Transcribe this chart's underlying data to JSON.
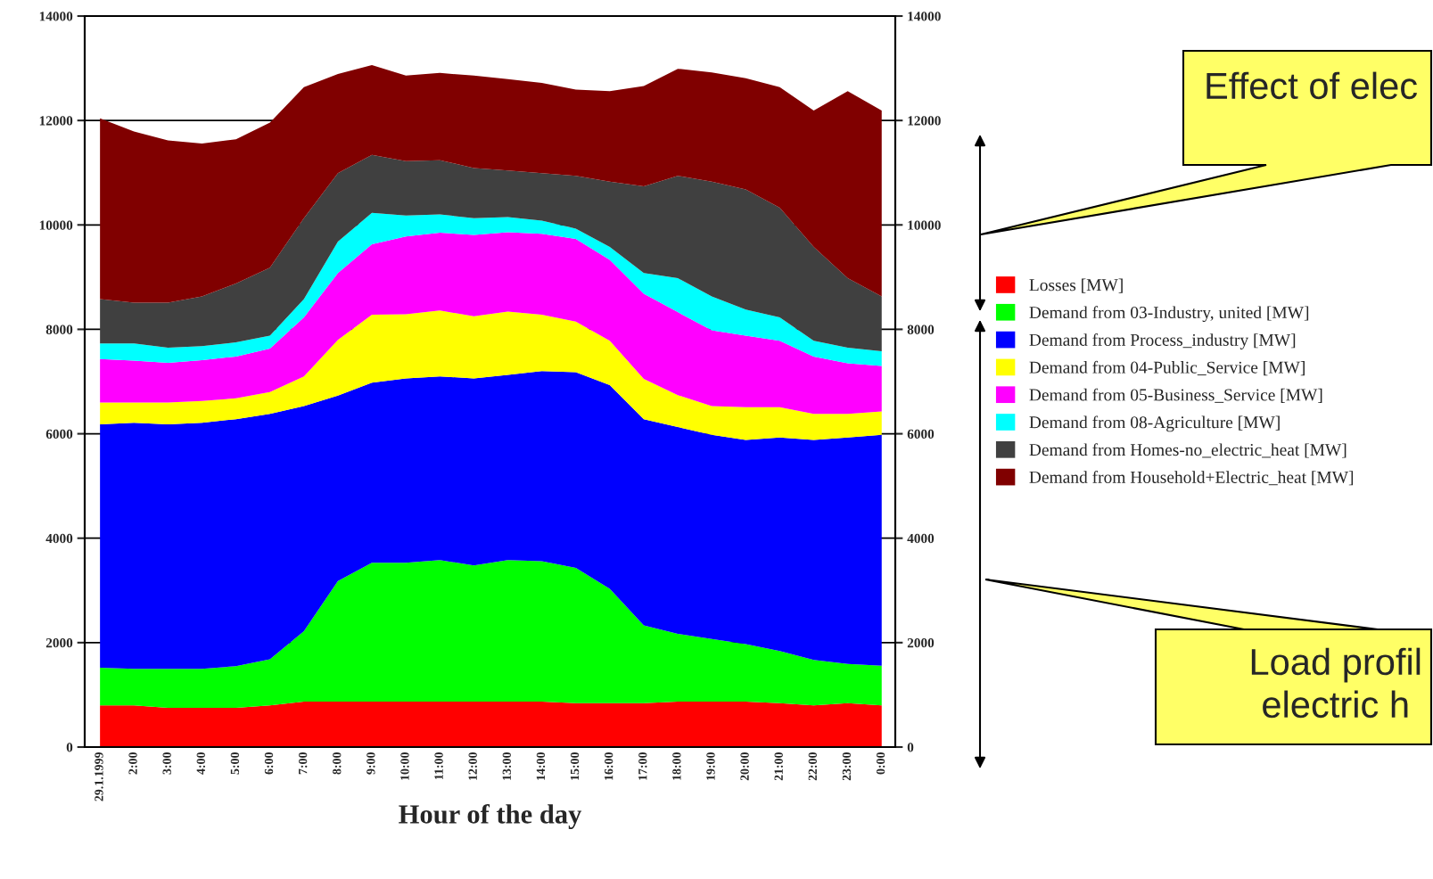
{
  "chart_data": {
    "type": "area",
    "stacked": true,
    "xlabel": "Hour of the day",
    "x": [
      1,
      2,
      3,
      4,
      5,
      6,
      7,
      8,
      9,
      10,
      11,
      12,
      13,
      14,
      15,
      16,
      17,
      18,
      19,
      20,
      21,
      22,
      23,
      24
    ],
    "xlim": [
      0.55,
      24.4
    ],
    "xticks": [
      {
        "value": 1,
        "label": "29.1.1999"
      },
      {
        "value": 2,
        "label": "2:00"
      },
      {
        "value": 3,
        "label": "3:00"
      },
      {
        "value": 4,
        "label": "4:00"
      },
      {
        "value": 5,
        "label": "5:00"
      },
      {
        "value": 6,
        "label": "6:00"
      },
      {
        "value": 7,
        "label": "7:00"
      },
      {
        "value": 8,
        "label": "8:00"
      },
      {
        "value": 9,
        "label": "9:00"
      },
      {
        "value": 10,
        "label": "10:00"
      },
      {
        "value": 11,
        "label": "11:00"
      },
      {
        "value": 12,
        "label": "12:00"
      },
      {
        "value": 13,
        "label": "13:00"
      },
      {
        "value": 14,
        "label": "14:00"
      },
      {
        "value": 15,
        "label": "15:00"
      },
      {
        "value": 16,
        "label": "16:00"
      },
      {
        "value": 17,
        "label": "17:00"
      },
      {
        "value": 18,
        "label": "18:00"
      },
      {
        "value": 19,
        "label": "19:00"
      },
      {
        "value": 20,
        "label": "20:00"
      },
      {
        "value": 21,
        "label": "21:00"
      },
      {
        "value": 22,
        "label": "22:00"
      },
      {
        "value": 23,
        "label": "23:00"
      },
      {
        "value": 24,
        "label": "0:00"
      }
    ],
    "ylim": [
      0,
      14000
    ],
    "yticks": [
      0,
      2000,
      4000,
      6000,
      8000,
      10000,
      12000,
      14000
    ],
    "y2lim": [
      0,
      14000
    ],
    "y2ticks": [
      0,
      2000,
      4000,
      6000,
      8000,
      10000,
      12000,
      14000
    ],
    "grid": "y",
    "legend": "right",
    "series": [
      {
        "name": "Losses [MW]",
        "color": "#ff0000",
        "values": [
          800,
          800,
          750,
          750,
          750,
          800,
          870,
          870,
          870,
          870,
          870,
          870,
          870,
          870,
          840,
          840,
          840,
          870,
          870,
          870,
          840,
          800,
          840,
          800
        ]
      },
      {
        "name": "Demand from 03-Industry, united [MW]",
        "color": "#00ff00",
        "values": [
          720,
          700,
          750,
          750,
          800,
          880,
          1350,
          2310,
          2660,
          2660,
          2710,
          2610,
          2710,
          2690,
          2590,
          2190,
          1490,
          1300,
          1200,
          1100,
          1000,
          870,
          750,
          760
        ]
      },
      {
        "name": "Demand from Process_industry [MW]",
        "color": "#0000ff",
        "values": [
          4660,
          4710,
          4680,
          4710,
          4730,
          4700,
          4310,
          3550,
          3450,
          3530,
          3520,
          3580,
          3550,
          3640,
          3750,
          3900,
          3950,
          3960,
          3910,
          3910,
          4090,
          4210,
          4340,
          4420
        ]
      },
      {
        "name": "Demand from 04-Public_Service [MW]",
        "color": "#ffff00",
        "values": [
          420,
          390,
          420,
          420,
          400,
          420,
          570,
          1070,
          1300,
          1230,
          1260,
          1190,
          1210,
          1080,
          970,
          850,
          770,
          610,
          550,
          630,
          580,
          500,
          450,
          450
        ]
      },
      {
        "name": "Demand from 05-Business_Service [MW]",
        "color": "#ff00ff",
        "values": [
          830,
          800,
          760,
          780,
          800,
          830,
          1130,
          1280,
          1350,
          1490,
          1490,
          1560,
          1520,
          1550,
          1580,
          1550,
          1630,
          1590,
          1450,
          1370,
          1270,
          1100,
          970,
          870
        ]
      },
      {
        "name": "Demand from 08-Agriculture [MW]",
        "color": "#00ffff",
        "values": [
          300,
          330,
          290,
          270,
          270,
          250,
          350,
          600,
          600,
          400,
          350,
          320,
          290,
          250,
          200,
          250,
          400,
          650,
          650,
          500,
          450,
          300,
          300,
          280
        ]
      },
      {
        "name": "Demand from Homes-no_electric_heat [MW]",
        "color": "#404040",
        "values": [
          850,
          780,
          860,
          950,
          1130,
          1300,
          1550,
          1310,
          1110,
          1040,
          1040,
          960,
          890,
          910,
          1010,
          1250,
          1660,
          1960,
          2200,
          2300,
          2100,
          1800,
          1330,
          1050
        ]
      },
      {
        "name": "Demand from Household+Electric_heat [MW]",
        "color": "#800000",
        "values": [
          3460,
          3280,
          3110,
          2930,
          2760,
          2780,
          2510,
          1900,
          1720,
          1640,
          1670,
          1770,
          1750,
          1730,
          1650,
          1730,
          1920,
          2050,
          2090,
          2130,
          2310,
          2610,
          3580,
          3560
        ]
      }
    ],
    "annotations": [
      "Effect of elec",
      "Load profil\nelectric h"
    ]
  }
}
